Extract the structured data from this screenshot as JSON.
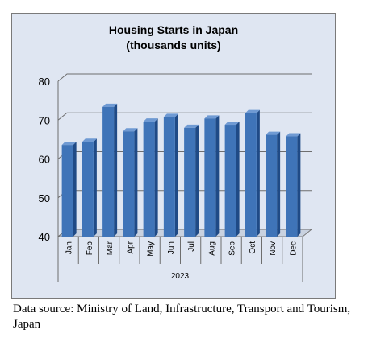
{
  "chart_data": {
    "type": "bar",
    "title": "Housing Starts in Japan",
    "subtitle": "(thousands units)",
    "categories": [
      "Jan",
      "Feb",
      "Mar",
      "Apr",
      "May",
      "Jun",
      "Jul",
      "Aug",
      "Sep",
      "Oct",
      "Nov",
      "Dec"
    ],
    "values": [
      63.6,
      64.4,
      73.4,
      67.1,
      69.6,
      70.8,
      68.0,
      70.4,
      68.8,
      71.8,
      66.2,
      65.8
    ],
    "group_label": "2023",
    "yticks": [
      "40",
      "50",
      "60",
      "70",
      "80"
    ],
    "ylim": [
      40,
      80
    ],
    "grid": true,
    "legend": "none",
    "bar_color": "#3f74b8"
  },
  "source_note": "Data source: Ministry of Land, Infrastructure, Transport and Tourism, Japan"
}
